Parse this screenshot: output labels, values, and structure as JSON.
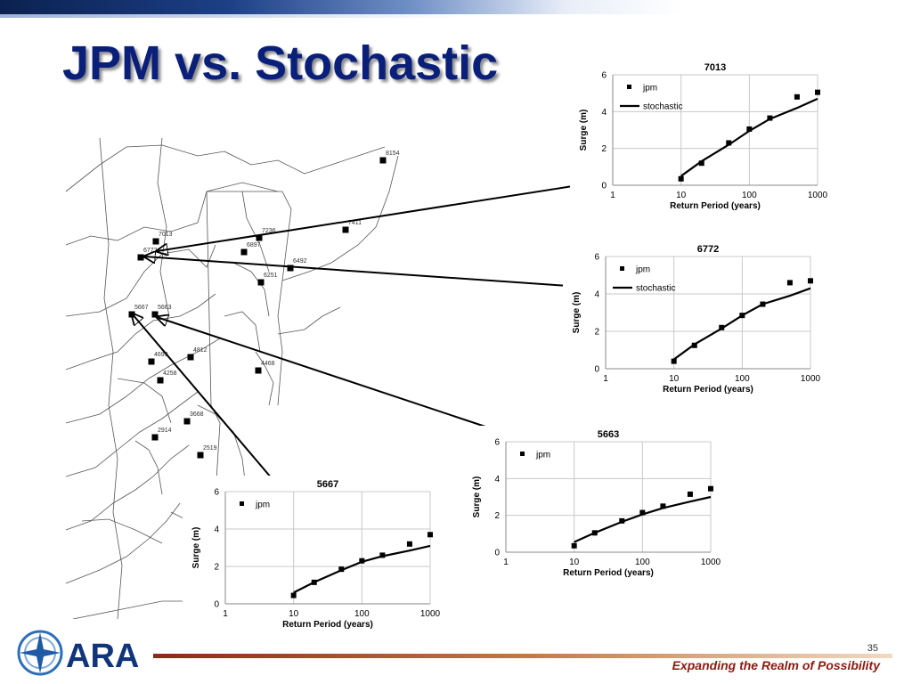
{
  "slide": {
    "title": "JPM vs. Stochastic",
    "page_number": "35",
    "tagline": "Expanding the Realm of Possibility",
    "logo_text": "ARA"
  },
  "colors": {
    "title": "#0a1f7a",
    "band_dark": "#0b2150",
    "footer_line": "#a0461e",
    "tagline": "#8b1a10",
    "marker": "#000000",
    "map_lines": "#555555"
  },
  "map": {
    "stations": [
      {
        "label": "8154"
      },
      {
        "label": "7411"
      },
      {
        "label": "7236"
      },
      {
        "label": "6897"
      },
      {
        "label": "7013"
      },
      {
        "label": "6772"
      },
      {
        "label": "6492"
      },
      {
        "label": "6251"
      },
      {
        "label": "5667"
      },
      {
        "label": "5663"
      },
      {
        "label": "4699"
      },
      {
        "label": "4812"
      },
      {
        "label": "4258"
      },
      {
        "label": "4468"
      },
      {
        "label": "3668"
      },
      {
        "label": "2914"
      },
      {
        "label": "2519"
      }
    ]
  },
  "chart_data": [
    {
      "type": "scatter",
      "title": "7013",
      "xlabel": "Return Period (years)",
      "ylabel": "Surge (m)",
      "x_scale": "log",
      "xlim": [
        1,
        1000
      ],
      "ylim": [
        0,
        6
      ],
      "x_ticks": [
        "1",
        "10",
        "100",
        "1000"
      ],
      "y_ticks": [
        "0",
        "2",
        "4",
        "6"
      ],
      "grid": true,
      "legend": "top-left",
      "series": [
        {
          "name": "jpm",
          "kind": "markers",
          "points": [
            [
              10,
              0.35
            ],
            [
              20,
              1.2
            ],
            [
              50,
              2.3
            ],
            [
              100,
              3.05
            ],
            [
              200,
              3.65
            ],
            [
              500,
              4.8
            ],
            [
              1000,
              5.05
            ]
          ]
        },
        {
          "name": "stochastic",
          "kind": "line",
          "points": [
            [
              10,
              0.5
            ],
            [
              20,
              1.3
            ],
            [
              50,
              2.2
            ],
            [
              100,
              2.95
            ],
            [
              200,
              3.6
            ],
            [
              500,
              4.2
            ],
            [
              1000,
              4.7
            ]
          ]
        }
      ]
    },
    {
      "type": "scatter",
      "title": "6772",
      "xlabel": "Return Period (years)",
      "ylabel": "Surge (m)",
      "x_scale": "log",
      "xlim": [
        1,
        1000
      ],
      "ylim": [
        0,
        6
      ],
      "x_ticks": [
        "1",
        "10",
        "100",
        "1000"
      ],
      "y_ticks": [
        "0",
        "2",
        "4",
        "6"
      ],
      "grid": true,
      "legend": "top-left",
      "series": [
        {
          "name": "jpm",
          "kind": "markers",
          "points": [
            [
              10,
              0.4
            ],
            [
              20,
              1.25
            ],
            [
              50,
              2.2
            ],
            [
              100,
              2.85
            ],
            [
              200,
              3.45
            ],
            [
              500,
              4.6
            ],
            [
              1000,
              4.7
            ]
          ]
        },
        {
          "name": "stochastic",
          "kind": "line",
          "points": [
            [
              10,
              0.5
            ],
            [
              20,
              1.3
            ],
            [
              50,
              2.15
            ],
            [
              100,
              2.85
            ],
            [
              200,
              3.45
            ],
            [
              500,
              3.9
            ],
            [
              1000,
              4.3
            ]
          ]
        }
      ]
    },
    {
      "type": "scatter",
      "title": "5663",
      "xlabel": "Return Period (years)",
      "ylabel": "Surge (m)",
      "x_scale": "log",
      "xlim": [
        1,
        1000
      ],
      "ylim": [
        0,
        6
      ],
      "x_ticks": [
        "1",
        "10",
        "100",
        "1000"
      ],
      "y_ticks": [
        "0",
        "2",
        "4",
        "6"
      ],
      "grid": true,
      "legend": "top-left",
      "series": [
        {
          "name": "jpm",
          "kind": "markers",
          "points": [
            [
              10,
              0.35
            ],
            [
              20,
              1.05
            ],
            [
              50,
              1.7
            ],
            [
              100,
              2.15
            ],
            [
              200,
              2.5
            ],
            [
              500,
              3.15
            ],
            [
              1000,
              3.45
            ]
          ]
        },
        {
          "name": "",
          "kind": "line",
          "points": [
            [
              10,
              0.55
            ],
            [
              20,
              1.05
            ],
            [
              50,
              1.65
            ],
            [
              100,
              2.05
            ],
            [
              200,
              2.4
            ],
            [
              500,
              2.75
            ],
            [
              1000,
              3.0
            ]
          ]
        }
      ]
    },
    {
      "type": "scatter",
      "title": "5667",
      "xlabel": "Return Period (years)",
      "ylabel": "Surge (m)",
      "x_scale": "log",
      "xlim": [
        1,
        1000
      ],
      "ylim": [
        0,
        6
      ],
      "x_ticks": [
        "1",
        "10",
        "100",
        "1000"
      ],
      "y_ticks": [
        "0",
        "2",
        "4",
        "6"
      ],
      "grid": true,
      "legend": "top-left",
      "series": [
        {
          "name": "jpm",
          "kind": "markers",
          "points": [
            [
              10,
              0.45
            ],
            [
              20,
              1.15
            ],
            [
              50,
              1.85
            ],
            [
              100,
              2.3
            ],
            [
              200,
              2.6
            ],
            [
              500,
              3.2
            ],
            [
              1000,
              3.7
            ]
          ]
        },
        {
          "name": "",
          "kind": "line",
          "points": [
            [
              10,
              0.6
            ],
            [
              20,
              1.15
            ],
            [
              50,
              1.8
            ],
            [
              100,
              2.25
            ],
            [
              200,
              2.55
            ],
            [
              500,
              2.85
            ],
            [
              1000,
              3.1
            ]
          ]
        }
      ]
    }
  ]
}
